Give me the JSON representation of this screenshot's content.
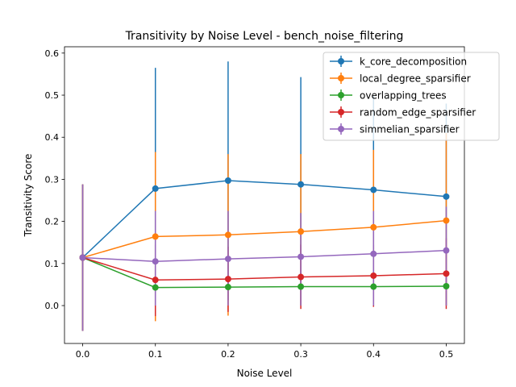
{
  "chart_data": {
    "type": "line",
    "title": "Transitivity by Noise Level - bench_noise_filtering",
    "xlabel": "Noise Level",
    "ylabel": "Transitivity Score",
    "x": [
      0.0,
      0.1,
      0.2,
      0.3,
      0.4,
      0.5
    ],
    "xlim": [
      -0.025,
      0.525
    ],
    "ylim": [
      -0.09,
      0.615
    ],
    "xticks": [
      "0.0",
      "0.1",
      "0.2",
      "0.3",
      "0.4",
      "0.5"
    ],
    "yticks": [
      "0.0",
      "0.1",
      "0.2",
      "0.3",
      "0.4",
      "0.5",
      "0.6"
    ],
    "grid": false,
    "legend_position": "top-right",
    "series": [
      {
        "name": "k_core_decomposition",
        "color": "#1f77b4",
        "values": [
          0.114,
          0.278,
          0.297,
          0.288,
          0.275,
          0.259
        ],
        "error_low": [
          -0.06,
          0.0,
          0.013,
          0.0,
          0.0,
          0.0
        ],
        "error_high": [
          0.288,
          0.565,
          0.58,
          0.543,
          0.5,
          0.48
        ]
      },
      {
        "name": "local_degree_sparsifier",
        "color": "#ff7f0e",
        "values": [
          0.114,
          0.164,
          0.168,
          0.176,
          0.186,
          0.202
        ],
        "error_low": [
          -0.06,
          -0.037,
          -0.024,
          0.0,
          0.0,
          0.0
        ],
        "error_high": [
          0.288,
          0.365,
          0.36,
          0.36,
          0.37,
          0.41
        ]
      },
      {
        "name": "overlapping_trees",
        "color": "#2ca02c",
        "values": [
          0.114,
          0.043,
          0.044,
          0.045,
          0.045,
          0.046
        ],
        "error_low": [
          -0.06,
          0.043,
          0.044,
          0.045,
          0.045,
          0.046
        ],
        "error_high": [
          0.288,
          0.043,
          0.044,
          0.045,
          0.045,
          0.046
        ]
      },
      {
        "name": "random_edge_sparsifier",
        "color": "#d62728",
        "values": [
          0.114,
          0.061,
          0.063,
          0.068,
          0.071,
          0.076
        ],
        "error_low": [
          -0.06,
          -0.025,
          -0.015,
          -0.008,
          -0.003,
          -0.008
        ],
        "error_high": [
          0.288,
          0.145,
          0.14,
          0.145,
          0.145,
          0.16
        ]
      },
      {
        "name": "simmelian_sparsifier",
        "color": "#9467bd",
        "values": [
          0.114,
          0.105,
          0.111,
          0.116,
          0.123,
          0.131
        ],
        "error_low": [
          -0.06,
          0.0,
          0.0,
          0.0,
          0.0,
          0.0
        ],
        "error_high": [
          0.288,
          0.225,
          0.225,
          0.22,
          0.225,
          0.235
        ]
      }
    ]
  }
}
